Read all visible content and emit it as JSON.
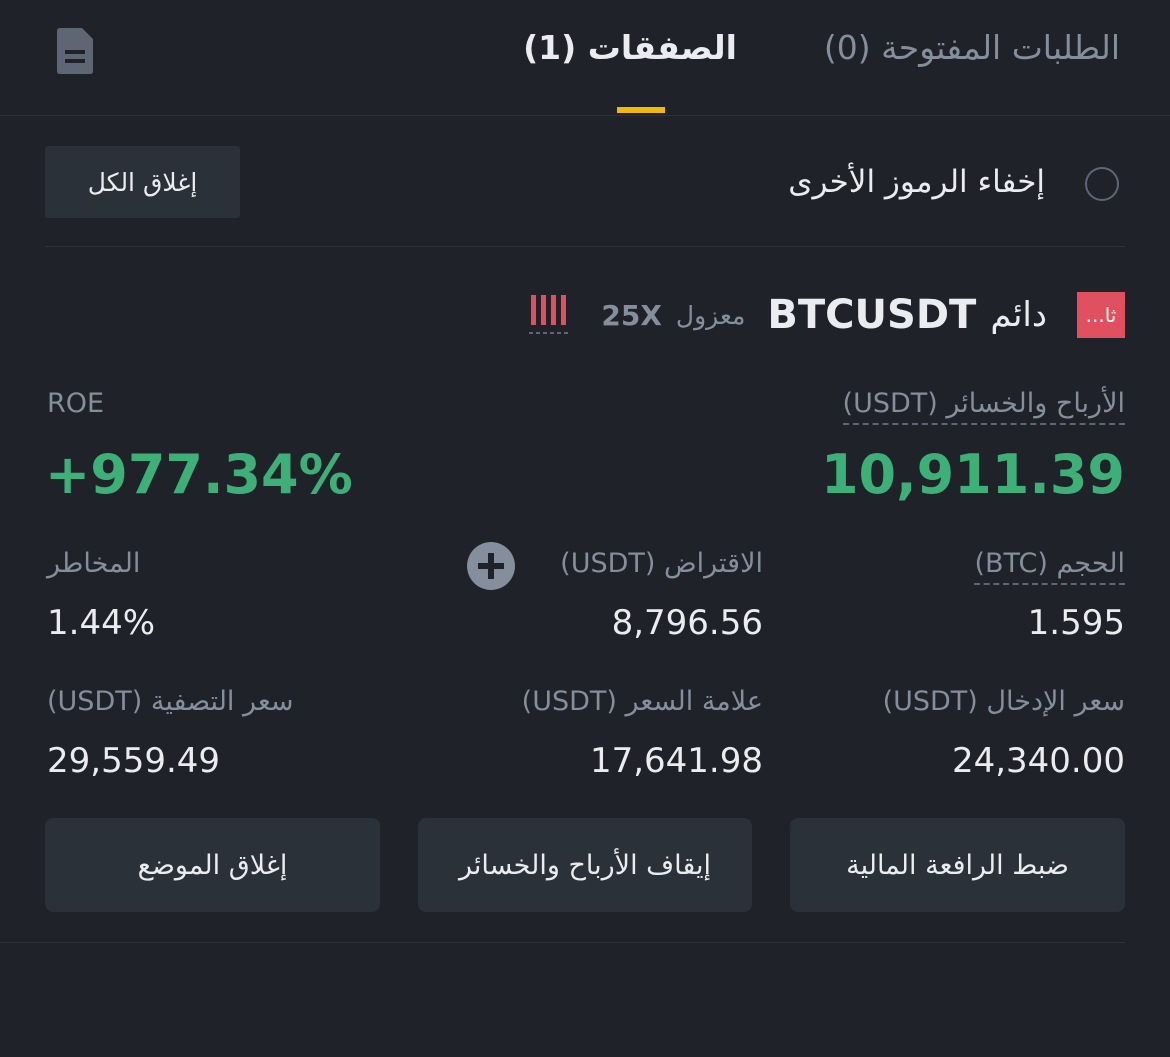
{
  "tabs": {
    "open_orders": "الطلبات المفتوحة (0)",
    "positions": "الصفقات (1)"
  },
  "filter": {
    "hide_other_symbols": "إخفاء الرموز الأخرى",
    "close_all": "إغلاق الكل"
  },
  "position": {
    "badge": "ثا...",
    "symbol": "BTCUSDT",
    "contract": "دائم",
    "margin_mode": "معزول",
    "leverage": "25X",
    "pnl_label": "الأرباح والخسائر (USDT)",
    "pnl_value": "10,911.39",
    "roe_label": "ROE",
    "roe_value": "+977.34%",
    "size_label": "الحجم (BTC)",
    "size_value": "1.595",
    "borrow_label": "الاقتراض (USDT)",
    "borrow_value": "8,796.56",
    "risk_label": "المخاطر",
    "risk_value": "1.44%",
    "entry_label": "سعر الإدخال (USDT)",
    "entry_value": "24,340.00",
    "mark_label": "علامة السعر (USDT)",
    "mark_value": "17,641.98",
    "liq_label": "سعر التصفية (USDT)",
    "liq_value": "29,559.49"
  },
  "buttons": {
    "adjust_leverage": "ضبط الرافعة المالية",
    "tp_sl": "إيقاف الأرباح والخسائر",
    "close_position": "إغلاق الموضع"
  }
}
